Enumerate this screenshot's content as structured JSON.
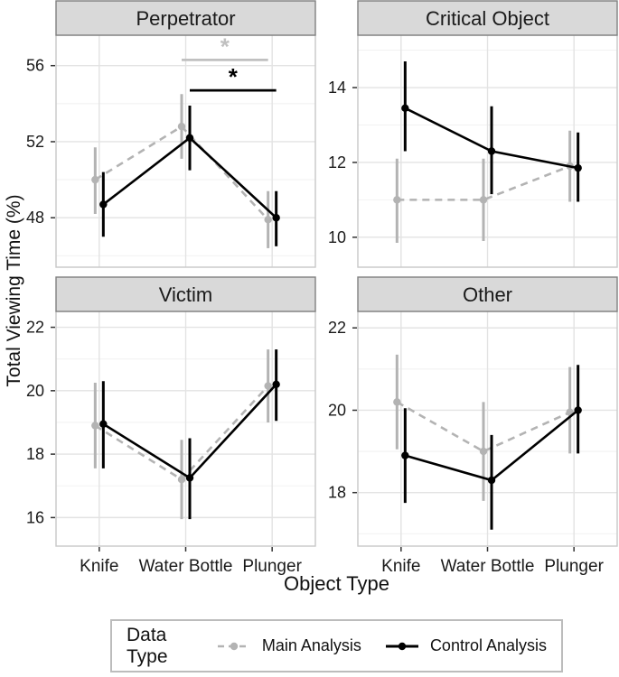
{
  "chart_data": {
    "type": "line",
    "title": "",
    "xlabel": "Object Type",
    "ylabel": "Total Viewing Time (%)",
    "categories": [
      "Knife",
      "Water Bottle",
      "Plunger"
    ],
    "legend": {
      "title": "Data Type",
      "position": "bottom",
      "entries": [
        {
          "label": "Main Analysis",
          "color": "#b3b3b3",
          "dash": true
        },
        {
          "label": "Control Analysis",
          "color": "#000000",
          "dash": false
        }
      ]
    },
    "grid": {
      "major": true,
      "minor": true
    },
    "style": {
      "strip_fill": "#d9d9d9",
      "strip_border": "#808080",
      "panel_border": "#c8c8c8",
      "grid_major": "#e3e3e3",
      "grid_minor": "#f2f2f2",
      "text_color": "#1a1a1a",
      "tick_color": "#333333"
    },
    "facets": [
      {
        "title": "Perpetrator",
        "ylim": [
          45.4,
          57.6
        ],
        "yticks": [
          48,
          52,
          56
        ],
        "yminor": [
          46,
          50,
          54
        ],
        "series": [
          {
            "name": "Main Analysis",
            "values": [
              50.0,
              52.8,
              47.9
            ],
            "ci_low": [
              48.2,
              51.1,
              46.4
            ],
            "ci_high": [
              51.7,
              54.5,
              49.4
            ]
          },
          {
            "name": "Control Analysis",
            "values": [
              48.7,
              52.2,
              48.0
            ],
            "ci_low": [
              47.0,
              50.5,
              46.5
            ],
            "ci_high": [
              50.4,
              53.9,
              49.4
            ]
          }
        ],
        "significance": [
          {
            "series": 0,
            "from": 1,
            "to": 2,
            "y": 56.3,
            "label": "*",
            "color": "#c0c0c0"
          },
          {
            "series": 1,
            "from": 1,
            "to": 2,
            "y": 54.7,
            "label": "*",
            "color": "#000000"
          }
        ]
      },
      {
        "title": "Critical Object",
        "ylim": [
          9.2,
          15.4
        ],
        "yticks": [
          10,
          12,
          14
        ],
        "yminor": [
          9,
          11,
          13,
          15
        ],
        "series": [
          {
            "name": "Main Analysis",
            "values": [
              11.0,
              11.0,
              11.9
            ],
            "ci_low": [
              9.85,
              9.9,
              10.95
            ],
            "ci_high": [
              12.1,
              12.1,
              12.85
            ]
          },
          {
            "name": "Control Analysis",
            "values": [
              13.45,
              12.3,
              11.85
            ],
            "ci_low": [
              12.3,
              11.15,
              10.95
            ],
            "ci_high": [
              14.7,
              13.5,
              12.8
            ]
          }
        ],
        "significance": []
      },
      {
        "title": "Victim",
        "ylim": [
          15.1,
          22.5
        ],
        "yticks": [
          16,
          18,
          20,
          22
        ],
        "yminor": [
          17,
          19,
          21
        ],
        "series": [
          {
            "name": "Main Analysis",
            "values": [
              18.9,
              17.2,
              20.15
            ],
            "ci_low": [
              17.55,
              15.95,
              19.0
            ],
            "ci_high": [
              20.25,
              18.45,
              21.3
            ]
          },
          {
            "name": "Control Analysis",
            "values": [
              18.95,
              17.25,
              20.2
            ],
            "ci_low": [
              17.55,
              15.95,
              19.05
            ],
            "ci_high": [
              20.3,
              18.5,
              21.3
            ]
          }
        ],
        "significance": []
      },
      {
        "title": "Other",
        "ylim": [
          16.7,
          22.4
        ],
        "yticks": [
          18,
          20,
          22
        ],
        "yminor": [
          17,
          19,
          21
        ],
        "series": [
          {
            "name": "Main Analysis",
            "values": [
              20.2,
              19.0,
              19.95
            ],
            "ci_low": [
              19.05,
              17.8,
              18.95
            ],
            "ci_high": [
              21.35,
              20.2,
              21.05
            ]
          },
          {
            "name": "Control Analysis",
            "values": [
              18.9,
              18.3,
              20.0
            ],
            "ci_low": [
              17.75,
              17.1,
              18.95
            ],
            "ci_high": [
              20.05,
              19.4,
              21.1
            ]
          }
        ],
        "significance": []
      }
    ]
  }
}
